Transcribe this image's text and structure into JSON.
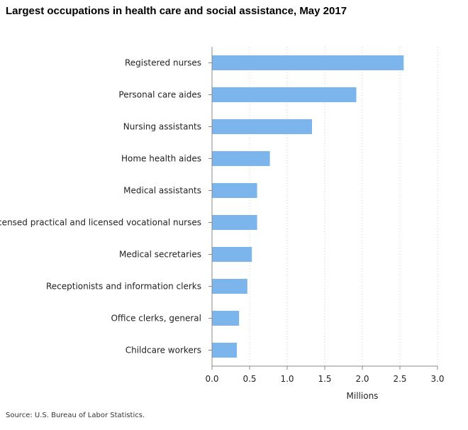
{
  "title": "Largest occupations in health care and social assistance, May 2017",
  "source": "Source: U.S. Bureau of Labor Statistics.",
  "colors": {
    "bar": "#7cb5ec",
    "grid": "#c8cdd6",
    "axis": "#888888"
  },
  "chart_data": {
    "type": "bar",
    "orientation": "horizontal",
    "title": "Largest occupations in health care and social assistance, May 2017",
    "xlabel": "Millions",
    "ylabel": "",
    "xlim": [
      0,
      3.0
    ],
    "xticks": [
      "0.0",
      "0.5",
      "1.0",
      "1.5",
      "2.0",
      "2.5",
      "3.0"
    ],
    "grid": "vertical dotted",
    "categories": [
      "Registered nurses",
      "Personal care aides",
      "Nursing assistants",
      "Home health aides",
      "Medical assistants",
      "Licensed practical and licensed vocational nurses",
      "Medical secretaries",
      "Receptionists and information clerks",
      "Office clerks, general",
      "Childcare workers"
    ],
    "values": [
      2.55,
      1.92,
      1.33,
      0.77,
      0.6,
      0.6,
      0.53,
      0.47,
      0.36,
      0.33
    ]
  }
}
